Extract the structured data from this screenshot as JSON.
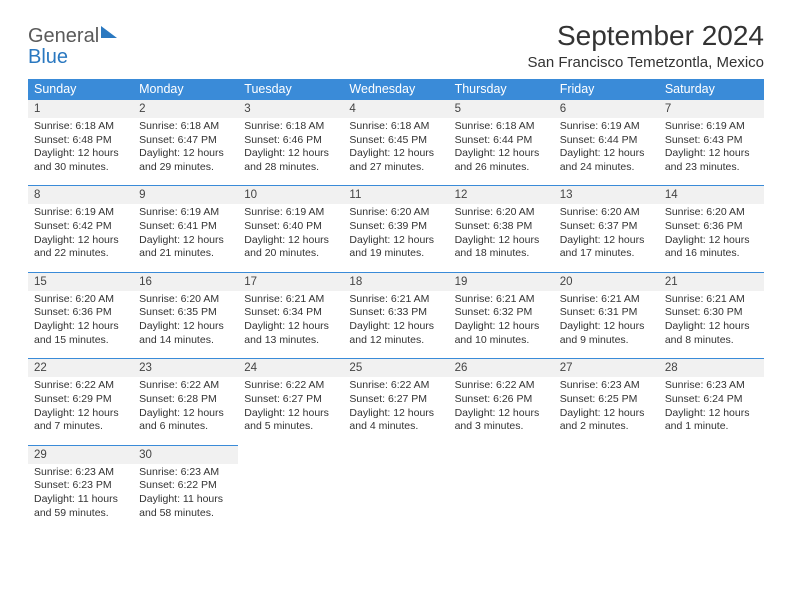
{
  "logo": {
    "word1": "General",
    "word2": "Blue"
  },
  "title": "September 2024",
  "location": "San Francisco Temetzontla, Mexico",
  "theme": {
    "header_bg": "#3a8bd8",
    "header_fg": "#ffffff",
    "daynum_bg": "#f1f1f1",
    "border_color": "#3a8bd8",
    "text_color": "#333333",
    "logo_gray": "#5a5a5a",
    "logo_blue": "#2a78c0",
    "page_bg": "#ffffff",
    "title_fontsize": 28,
    "location_fontsize": 15,
    "weekday_fontsize": 12.5,
    "cell_fontsize": 10.5
  },
  "weekdays": [
    "Sunday",
    "Monday",
    "Tuesday",
    "Wednesday",
    "Thursday",
    "Friday",
    "Saturday"
  ],
  "weeks": [
    [
      {
        "n": "1",
        "sr": "Sunrise: 6:18 AM",
        "ss": "Sunset: 6:48 PM",
        "dl1": "Daylight: 12 hours",
        "dl2": "and 30 minutes."
      },
      {
        "n": "2",
        "sr": "Sunrise: 6:18 AM",
        "ss": "Sunset: 6:47 PM",
        "dl1": "Daylight: 12 hours",
        "dl2": "and 29 minutes."
      },
      {
        "n": "3",
        "sr": "Sunrise: 6:18 AM",
        "ss": "Sunset: 6:46 PM",
        "dl1": "Daylight: 12 hours",
        "dl2": "and 28 minutes."
      },
      {
        "n": "4",
        "sr": "Sunrise: 6:18 AM",
        "ss": "Sunset: 6:45 PM",
        "dl1": "Daylight: 12 hours",
        "dl2": "and 27 minutes."
      },
      {
        "n": "5",
        "sr": "Sunrise: 6:18 AM",
        "ss": "Sunset: 6:44 PM",
        "dl1": "Daylight: 12 hours",
        "dl2": "and 26 minutes."
      },
      {
        "n": "6",
        "sr": "Sunrise: 6:19 AM",
        "ss": "Sunset: 6:44 PM",
        "dl1": "Daylight: 12 hours",
        "dl2": "and 24 minutes."
      },
      {
        "n": "7",
        "sr": "Sunrise: 6:19 AM",
        "ss": "Sunset: 6:43 PM",
        "dl1": "Daylight: 12 hours",
        "dl2": "and 23 minutes."
      }
    ],
    [
      {
        "n": "8",
        "sr": "Sunrise: 6:19 AM",
        "ss": "Sunset: 6:42 PM",
        "dl1": "Daylight: 12 hours",
        "dl2": "and 22 minutes."
      },
      {
        "n": "9",
        "sr": "Sunrise: 6:19 AM",
        "ss": "Sunset: 6:41 PM",
        "dl1": "Daylight: 12 hours",
        "dl2": "and 21 minutes."
      },
      {
        "n": "10",
        "sr": "Sunrise: 6:19 AM",
        "ss": "Sunset: 6:40 PM",
        "dl1": "Daylight: 12 hours",
        "dl2": "and 20 minutes."
      },
      {
        "n": "11",
        "sr": "Sunrise: 6:20 AM",
        "ss": "Sunset: 6:39 PM",
        "dl1": "Daylight: 12 hours",
        "dl2": "and 19 minutes."
      },
      {
        "n": "12",
        "sr": "Sunrise: 6:20 AM",
        "ss": "Sunset: 6:38 PM",
        "dl1": "Daylight: 12 hours",
        "dl2": "and 18 minutes."
      },
      {
        "n": "13",
        "sr": "Sunrise: 6:20 AM",
        "ss": "Sunset: 6:37 PM",
        "dl1": "Daylight: 12 hours",
        "dl2": "and 17 minutes."
      },
      {
        "n": "14",
        "sr": "Sunrise: 6:20 AM",
        "ss": "Sunset: 6:36 PM",
        "dl1": "Daylight: 12 hours",
        "dl2": "and 16 minutes."
      }
    ],
    [
      {
        "n": "15",
        "sr": "Sunrise: 6:20 AM",
        "ss": "Sunset: 6:36 PM",
        "dl1": "Daylight: 12 hours",
        "dl2": "and 15 minutes."
      },
      {
        "n": "16",
        "sr": "Sunrise: 6:20 AM",
        "ss": "Sunset: 6:35 PM",
        "dl1": "Daylight: 12 hours",
        "dl2": "and 14 minutes."
      },
      {
        "n": "17",
        "sr": "Sunrise: 6:21 AM",
        "ss": "Sunset: 6:34 PM",
        "dl1": "Daylight: 12 hours",
        "dl2": "and 13 minutes."
      },
      {
        "n": "18",
        "sr": "Sunrise: 6:21 AM",
        "ss": "Sunset: 6:33 PM",
        "dl1": "Daylight: 12 hours",
        "dl2": "and 12 minutes."
      },
      {
        "n": "19",
        "sr": "Sunrise: 6:21 AM",
        "ss": "Sunset: 6:32 PM",
        "dl1": "Daylight: 12 hours",
        "dl2": "and 10 minutes."
      },
      {
        "n": "20",
        "sr": "Sunrise: 6:21 AM",
        "ss": "Sunset: 6:31 PM",
        "dl1": "Daylight: 12 hours",
        "dl2": "and 9 minutes."
      },
      {
        "n": "21",
        "sr": "Sunrise: 6:21 AM",
        "ss": "Sunset: 6:30 PM",
        "dl1": "Daylight: 12 hours",
        "dl2": "and 8 minutes."
      }
    ],
    [
      {
        "n": "22",
        "sr": "Sunrise: 6:22 AM",
        "ss": "Sunset: 6:29 PM",
        "dl1": "Daylight: 12 hours",
        "dl2": "and 7 minutes."
      },
      {
        "n": "23",
        "sr": "Sunrise: 6:22 AM",
        "ss": "Sunset: 6:28 PM",
        "dl1": "Daylight: 12 hours",
        "dl2": "and 6 minutes."
      },
      {
        "n": "24",
        "sr": "Sunrise: 6:22 AM",
        "ss": "Sunset: 6:27 PM",
        "dl1": "Daylight: 12 hours",
        "dl2": "and 5 minutes."
      },
      {
        "n": "25",
        "sr": "Sunrise: 6:22 AM",
        "ss": "Sunset: 6:27 PM",
        "dl1": "Daylight: 12 hours",
        "dl2": "and 4 minutes."
      },
      {
        "n": "26",
        "sr": "Sunrise: 6:22 AM",
        "ss": "Sunset: 6:26 PM",
        "dl1": "Daylight: 12 hours",
        "dl2": "and 3 minutes."
      },
      {
        "n": "27",
        "sr": "Sunrise: 6:23 AM",
        "ss": "Sunset: 6:25 PM",
        "dl1": "Daylight: 12 hours",
        "dl2": "and 2 minutes."
      },
      {
        "n": "28",
        "sr": "Sunrise: 6:23 AM",
        "ss": "Sunset: 6:24 PM",
        "dl1": "Daylight: 12 hours",
        "dl2": "and 1 minute."
      }
    ],
    [
      {
        "n": "29",
        "sr": "Sunrise: 6:23 AM",
        "ss": "Sunset: 6:23 PM",
        "dl1": "Daylight: 11 hours",
        "dl2": "and 59 minutes."
      },
      {
        "n": "30",
        "sr": "Sunrise: 6:23 AM",
        "ss": "Sunset: 6:22 PM",
        "dl1": "Daylight: 11 hours",
        "dl2": "and 58 minutes."
      },
      null,
      null,
      null,
      null,
      null
    ]
  ]
}
